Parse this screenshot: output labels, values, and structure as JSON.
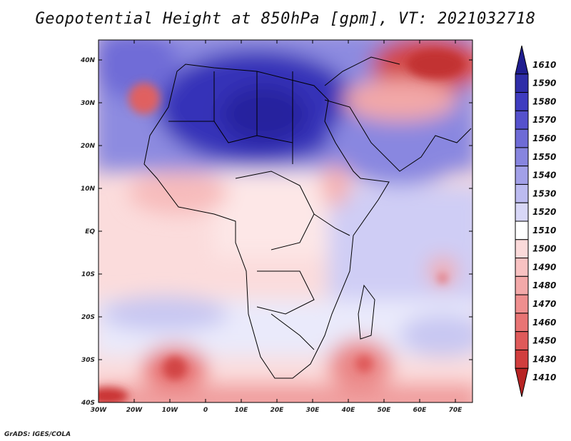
{
  "title": "Geopotential Height at 850hPa [gpm], VT: 2021032718",
  "credit": "GrADS: IGES/COLA",
  "axes": {
    "lat_labels": [
      "40N",
      "30N",
      "20N",
      "10N",
      "EQ",
      "10S",
      "20S",
      "30S",
      "40S"
    ],
    "lon_labels": [
      "30W",
      "20W",
      "10W",
      "0",
      "10E",
      "20E",
      "30E",
      "40E",
      "50E",
      "60E",
      "70E"
    ]
  },
  "colorbar": {
    "labels": [
      "1610",
      "1590",
      "1580",
      "1570",
      "1560",
      "1550",
      "1540",
      "1530",
      "1520",
      "1510",
      "1500",
      "1490",
      "1480",
      "1470",
      "1460",
      "1450",
      "1430",
      "1410"
    ],
    "colors": [
      "#1f1d8f",
      "#2f2da8",
      "#3f3cc0",
      "#5551cd",
      "#6e6bd6",
      "#8785df",
      "#a2a0e8",
      "#bcbbf0",
      "#d8d7f7",
      "#ffffff",
      "#fbdada",
      "#f8c2c2",
      "#f3a9a9",
      "#ef8f8f",
      "#e87474",
      "#df5a5a",
      "#d13e3e",
      "#b72424"
    ]
  }
}
